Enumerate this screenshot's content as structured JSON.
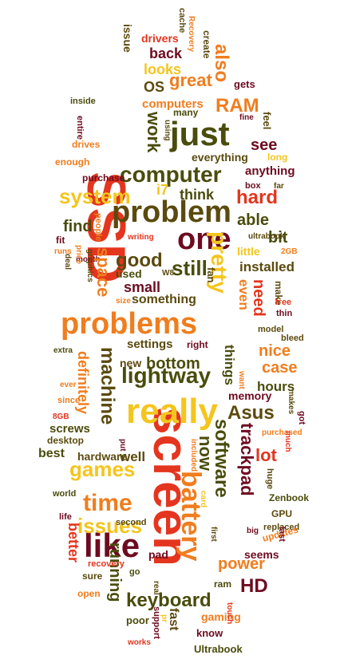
{
  "colors": {
    "dark_red": "#6e0b20",
    "red": "#e4351e",
    "orange": "#f07d1e",
    "yellow": "#f4c51c",
    "olive": "#5b4a0e",
    "olive_green": "#4a4c0c"
  },
  "words": [
    "SSD",
    "screen",
    "problem",
    "really",
    "problems",
    "one",
    "just",
    "battery",
    "like",
    "software",
    "computer",
    "system",
    "pretty",
    "trackpad",
    "time",
    "lightway",
    "games",
    "keyboard",
    "issues",
    "hard",
    "Asus",
    "machine",
    "good",
    "RAM",
    "also",
    "great",
    "looks",
    "back",
    "drivers",
    "issue",
    "create",
    "cache",
    "Recovery",
    "computers",
    "OS",
    "gets",
    "work",
    "see",
    "feel",
    "fine",
    "inside",
    "entire",
    "drives",
    "enough",
    "purchase",
    "many",
    "using",
    "everything",
    "long",
    "anything",
    "box",
    "far",
    "think",
    "i7",
    "able",
    "bit",
    "find",
    "people",
    "fit",
    "runs",
    "deal",
    "month",
    "price",
    "graphics",
    "writing",
    "ultrabook",
    "2GB",
    "little",
    "installed",
    "W8",
    "still",
    "fan",
    "used",
    "small",
    "space",
    "even",
    "need",
    "make",
    "size",
    "something",
    "free",
    "thin",
    "model",
    "bleed",
    "settings",
    "right",
    "definitely",
    "extra",
    "nice",
    "things",
    "case",
    "new",
    "bottom",
    "want",
    "hours",
    "memory",
    "ever",
    "since",
    "makes",
    "8GB",
    "got",
    "put",
    "screws",
    "desktop",
    "well",
    "best",
    "now",
    "lot",
    "purchased",
    "much",
    "hardware",
    "included",
    "huge",
    "Zenbook",
    "GPU",
    "card",
    "world",
    "replaced",
    "life",
    "updates",
    "last",
    "big",
    "better",
    "second",
    "first",
    "seems",
    "power",
    "HD",
    "running",
    "recovery",
    "pad",
    "sure",
    "go",
    "real",
    "ram",
    "open",
    "poor",
    "gaming",
    "touch",
    "support",
    "fast",
    "know",
    "works",
    "Ultrabook",
    "pr"
  ]
}
